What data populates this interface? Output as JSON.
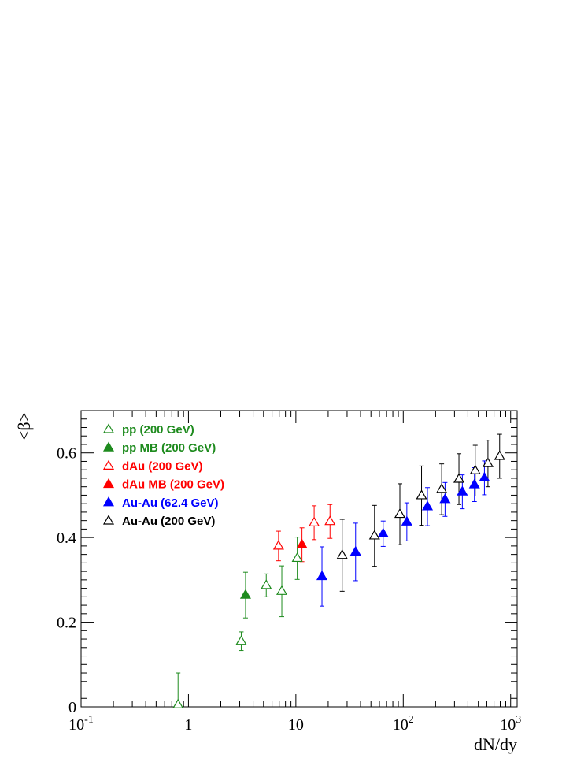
{
  "chart_data": {
    "type": "scatter",
    "title": "",
    "xlabel": "dN/dy",
    "ylabel": "<β>",
    "xscale": "log",
    "xlim": [
      0.1,
      1150
    ],
    "ylim": [
      0,
      0.7
    ],
    "grid": false,
    "legend_position": "top-left",
    "x_ticks": [
      {
        "value": 0.1,
        "base": "10",
        "exp": "-1"
      },
      {
        "value": 1,
        "base": "1",
        "exp": ""
      },
      {
        "value": 10,
        "base": "10",
        "exp": ""
      },
      {
        "value": 100,
        "base": "10",
        "exp": "2"
      },
      {
        "value": 1000,
        "base": "10",
        "exp": "3"
      }
    ],
    "y_ticks": [
      {
        "value": 0,
        "label": "0"
      },
      {
        "value": 0.2,
        "label": "0.2"
      },
      {
        "value": 0.4,
        "label": "0.4"
      },
      {
        "value": 0.6,
        "label": "0.6"
      }
    ],
    "series": [
      {
        "name": "pp (200 GeV)",
        "color": "#1e8b1e",
        "marker": "open-triangle",
        "points": [
          {
            "x": 0.8,
            "y": 0.005,
            "err": 0.075
          },
          {
            "x": 3.1,
            "y": 0.155,
            "err": 0.022
          },
          {
            "x": 5.3,
            "y": 0.287,
            "err": 0.027
          },
          {
            "x": 7.4,
            "y": 0.273,
            "err": 0.06
          },
          {
            "x": 10.3,
            "y": 0.351,
            "err": 0.05
          }
        ]
      },
      {
        "name": "pp MB (200 GeV)",
        "color": "#1e8b1e",
        "marker": "filled-triangle",
        "points": [
          {
            "x": 3.4,
            "y": 0.264,
            "err": 0.054
          }
        ]
      },
      {
        "name": "dAu (200 GeV)",
        "color": "#ff0000",
        "marker": "open-triangle",
        "points": [
          {
            "x": 6.9,
            "y": 0.38,
            "err": 0.035
          },
          {
            "x": 14.8,
            "y": 0.435,
            "err": 0.04
          },
          {
            "x": 20.8,
            "y": 0.438,
            "err": 0.04
          }
        ]
      },
      {
        "name": "dAu MB (200 GeV)",
        "color": "#ff0000",
        "marker": "filled-triangle",
        "points": [
          {
            "x": 11.4,
            "y": 0.383,
            "err": 0.04
          }
        ]
      },
      {
        "name": "Au-Au (62.4 GeV)",
        "color": "#0000ff",
        "marker": "filled-triangle",
        "points": [
          {
            "x": 17.5,
            "y": 0.308,
            "err": 0.07
          },
          {
            "x": 36,
            "y": 0.366,
            "err": 0.068
          },
          {
            "x": 65,
            "y": 0.409,
            "err": 0.03
          },
          {
            "x": 108,
            "y": 0.437,
            "err": 0.045
          },
          {
            "x": 168,
            "y": 0.473,
            "err": 0.045
          },
          {
            "x": 245,
            "y": 0.49,
            "err": 0.04
          },
          {
            "x": 355,
            "y": 0.508,
            "err": 0.04
          },
          {
            "x": 460,
            "y": 0.525,
            "err": 0.04
          },
          {
            "x": 570,
            "y": 0.541,
            "err": 0.04
          }
        ]
      },
      {
        "name": "Au-Au (200 GeV)",
        "color": "#000000",
        "marker": "open-triangle",
        "points": [
          {
            "x": 27,
            "y": 0.358,
            "err": 0.085
          },
          {
            "x": 54,
            "y": 0.404,
            "err": 0.072
          },
          {
            "x": 93,
            "y": 0.455,
            "err": 0.072
          },
          {
            "x": 148,
            "y": 0.499,
            "err": 0.07
          },
          {
            "x": 228,
            "y": 0.514,
            "err": 0.06
          },
          {
            "x": 330,
            "y": 0.538,
            "err": 0.06
          },
          {
            "x": 468,
            "y": 0.558,
            "err": 0.06
          },
          {
            "x": 615,
            "y": 0.575,
            "err": 0.055
          },
          {
            "x": 790,
            "y": 0.592,
            "err": 0.052
          }
        ]
      }
    ]
  }
}
